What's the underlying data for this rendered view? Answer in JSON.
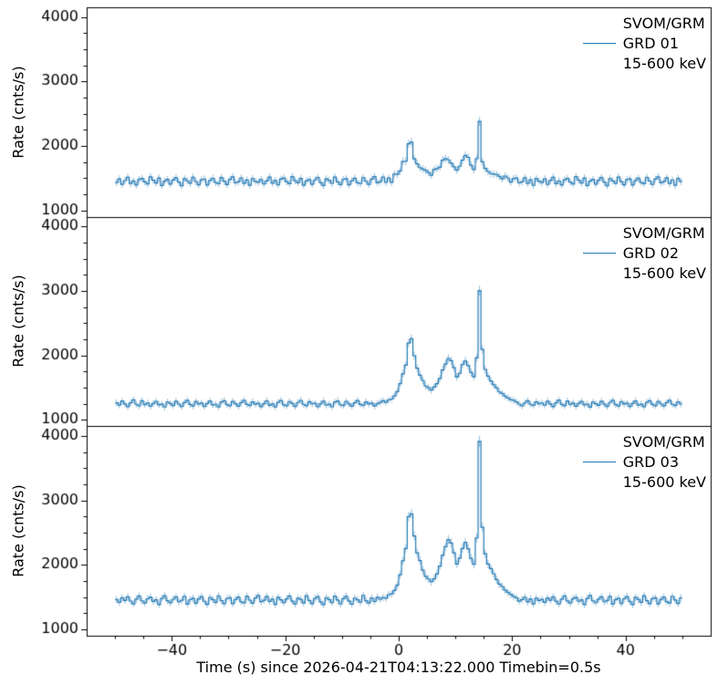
{
  "chart_data": {
    "type": "line",
    "subtype": "step-histogram-lightcurve-with-errorbars",
    "title": "",
    "xlabel": "Time (s) since 2026-04-21T04:13:22.000 Timebin=0.5s",
    "ylabel": "Rate (cnts/s)",
    "xlim": [
      -55,
      55
    ],
    "ylim": [
      900,
      4150
    ],
    "x_ticks": {
      "values": [
        -40,
        -20,
        0,
        20,
        40
      ],
      "labels": [
        "−40",
        "−20",
        "0",
        "20",
        "40"
      ]
    },
    "y_ticks": {
      "values": [
        1000,
        2000,
        3000,
        4000
      ],
      "labels": [
        "1000",
        "2000",
        "3000",
        "4000"
      ]
    },
    "x_minor_step": 5,
    "y_minor_step": 250,
    "t_start": -50,
    "bin_seconds": 0.5,
    "legend_position": "upper right",
    "error_bars": {
      "model": "sqrt(rate/bin_seconds)",
      "shown": true
    },
    "colors": {
      "line": "#1f77b4",
      "errorbar": "#1f77b4",
      "errorbar_alpha": 0.5,
      "axes": "#000000",
      "background": "#ffffff"
    },
    "series": [
      {
        "mission": "SVOM/GRM",
        "name": "GRD 01",
        "energy_band": "15-600 keV",
        "values": [
          1430,
          1487,
          1402,
          1461,
          1512,
          1416,
          1455,
          1391,
          1476,
          1494,
          1441,
          1409,
          1521,
          1466,
          1424,
          1502,
          1386,
          1452,
          1481,
          1407,
          1469,
          1506,
          1437,
          1381,
          1492,
          1458,
          1421,
          1514,
          1447,
          1396,
          1474,
          1486,
          1392,
          1463,
          1497,
          1431,
          1412,
          1509,
          1453,
          1399,
          1482,
          1519,
          1426,
          1443,
          1504,
          1417,
          1471,
          1388,
          1493,
          1449,
          1435,
          1478,
          1408,
          1457,
          1516,
          1422,
          1462,
          1394,
          1483,
          1501,
          1444,
          1413,
          1524,
          1459,
          1428,
          1496,
          1390,
          1456,
          1477,
          1403,
          1472,
          1511,
          1432,
          1385,
          1489,
          1464,
          1419,
          1517,
          1442,
          1398,
          1479,
          1491,
          1395,
          1460,
          1499,
          1427,
          1415,
          1507,
          1451,
          1404,
          1484,
          1522,
          1429,
          1446,
          1518,
          1433,
          1503,
          1436,
          1563,
          1559,
          1612,
          1757,
          1762,
          2032,
          2058,
          1798,
          1721,
          1663,
          1641,
          1618,
          1586,
          1544,
          1632,
          1647,
          1668,
          1779,
          1802,
          1783,
          1731,
          1676,
          1622,
          1684,
          1779,
          1851,
          1822,
          1701,
          1633,
          1801,
          2378,
          1752,
          1652,
          1603,
          1571,
          1562,
          1556,
          1527,
          1489,
          1532,
          1504,
          1437,
          1491,
          1502,
          1426,
          1441,
          1506,
          1418,
          1473,
          1387,
          1492,
          1452,
          1431,
          1488,
          1401,
          1462,
          1513,
          1414,
          1458,
          1392,
          1475,
          1496,
          1439,
          1411,
          1523,
          1467,
          1423,
          1503,
          1384,
          1453,
          1482,
          1406,
          1468,
          1508,
          1438,
          1382,
          1493,
          1457,
          1422,
          1516,
          1446,
          1397,
          1476,
          1487,
          1393,
          1464,
          1498,
          1432,
          1413,
          1511,
          1454,
          1401,
          1483,
          1521,
          1427,
          1444,
          1505,
          1416,
          1472,
          1389,
          1494,
          1448
        ]
      },
      {
        "mission": "SVOM/GRM",
        "name": "GRD 02",
        "energy_band": "15-600 keV",
        "values": [
          1264,
          1228,
          1291,
          1247,
          1205,
          1263,
          1309,
          1241,
          1216,
          1295,
          1236,
          1262,
          1209,
          1254,
          1287,
          1231,
          1243,
          1198,
          1276,
          1252,
          1222,
          1289,
          1244,
          1206,
          1268,
          1302,
          1238,
          1214,
          1284,
          1247,
          1261,
          1207,
          1253,
          1292,
          1229,
          1241,
          1201,
          1273,
          1296,
          1235,
          1218,
          1286,
          1249,
          1211,
          1266,
          1304,
          1239,
          1221,
          1279,
          1243,
          1258,
          1203,
          1251,
          1294,
          1226,
          1246,
          1199,
          1271,
          1298,
          1233,
          1217,
          1283,
          1252,
          1208,
          1269,
          1301,
          1237,
          1219,
          1281,
          1248,
          1256,
          1204,
          1249,
          1288,
          1227,
          1242,
          1202,
          1274,
          1293,
          1234,
          1221,
          1287,
          1246,
          1212,
          1264,
          1299,
          1240,
          1223,
          1277,
          1245,
          1259,
          1213,
          1251,
          1272,
          1296,
          1272,
          1308,
          1322,
          1371,
          1438,
          1562,
          1713,
          1848,
          2192,
          2258,
          1994,
          1801,
          1692,
          1612,
          1524,
          1496,
          1462,
          1508,
          1561,
          1642,
          1774,
          1866,
          1952,
          1917,
          1808,
          1664,
          1722,
          1858,
          1912,
          1841,
          1737,
          1668,
          1962,
          3004,
          2092,
          1782,
          1678,
          1603,
          1544,
          1497,
          1432,
          1409,
          1366,
          1341,
          1312,
          1304,
          1279,
          1244,
          1216,
          1262,
          1296,
          1241,
          1223,
          1278,
          1249,
          1262,
          1227,
          1289,
          1246,
          1204,
          1265,
          1307,
          1239,
          1218,
          1293,
          1237,
          1261,
          1211,
          1253,
          1286,
          1232,
          1244,
          1197,
          1274,
          1251,
          1224,
          1288,
          1242,
          1207,
          1269,
          1303,
          1236,
          1215,
          1283,
          1246,
          1259,
          1206,
          1252,
          1291,
          1228,
          1243,
          1203,
          1272,
          1295,
          1238,
          1219,
          1284,
          1248,
          1213,
          1267,
          1302,
          1241,
          1222,
          1280,
          1244
        ]
      },
      {
        "mission": "SVOM/GRM",
        "name": "GRD 03",
        "energy_band": "15-600 keV",
        "values": [
          1462,
          1419,
          1488,
          1447,
          1502,
          1438,
          1394,
          1467,
          1516,
          1441,
          1408,
          1473,
          1499,
          1432,
          1457,
          1384,
          1478,
          1521,
          1443,
          1412,
          1466,
          1503,
          1429,
          1448,
          1512,
          1391,
          1459,
          1481,
          1404,
          1471,
          1507,
          1434,
          1386,
          1494,
          1461,
          1417,
          1519,
          1445,
          1397,
          1477,
          1489,
          1396,
          1463,
          1501,
          1426,
          1411,
          1513,
          1452,
          1403,
          1486,
          1524,
          1428,
          1449,
          1509,
          1433,
          1468,
          1387,
          1497,
          1456,
          1414,
          1472,
          1518,
          1436,
          1393,
          1482,
          1464,
          1409,
          1522,
          1447,
          1398,
          1479,
          1506,
          1424,
          1383,
          1491,
          1462,
          1416,
          1514,
          1453,
          1392,
          1474,
          1511,
          1439,
          1388,
          1484,
          1458,
          1421,
          1526,
          1442,
          1407,
          1487,
          1431,
          1495,
          1466,
          1492,
          1483,
          1537,
          1548,
          1601,
          1684,
          1847,
          2061,
          2252,
          2748,
          2792,
          2449,
          2187,
          2066,
          1917,
          1822,
          1781,
          1739,
          1784,
          1861,
          1982,
          2148,
          2281,
          2392,
          2337,
          2186,
          2013,
          2104,
          2252,
          2348,
          2251,
          2102,
          2009,
          2418,
          3916,
          2581,
          2171,
          2012,
          1941,
          1862,
          1771,
          1702,
          1664,
          1608,
          1573,
          1542,
          1509,
          1488,
          1437,
          1461,
          1498,
          1426,
          1472,
          1393,
          1483,
          1446,
          1464,
          1417,
          1486,
          1449,
          1504,
          1436,
          1392,
          1469,
          1517,
          1439,
          1406,
          1474,
          1497,
          1434,
          1456,
          1382,
          1479,
          1523,
          1441,
          1413,
          1467,
          1502,
          1427,
          1446,
          1511,
          1389,
          1461,
          1483,
          1402,
          1473,
          1508,
          1432,
          1384,
          1496,
          1463,
          1418,
          1521,
          1444,
          1396,
          1476,
          1488,
          1394,
          1465,
          1499,
          1428,
          1409,
          1512,
          1454,
          1401,
          1487
        ]
      }
    ]
  }
}
